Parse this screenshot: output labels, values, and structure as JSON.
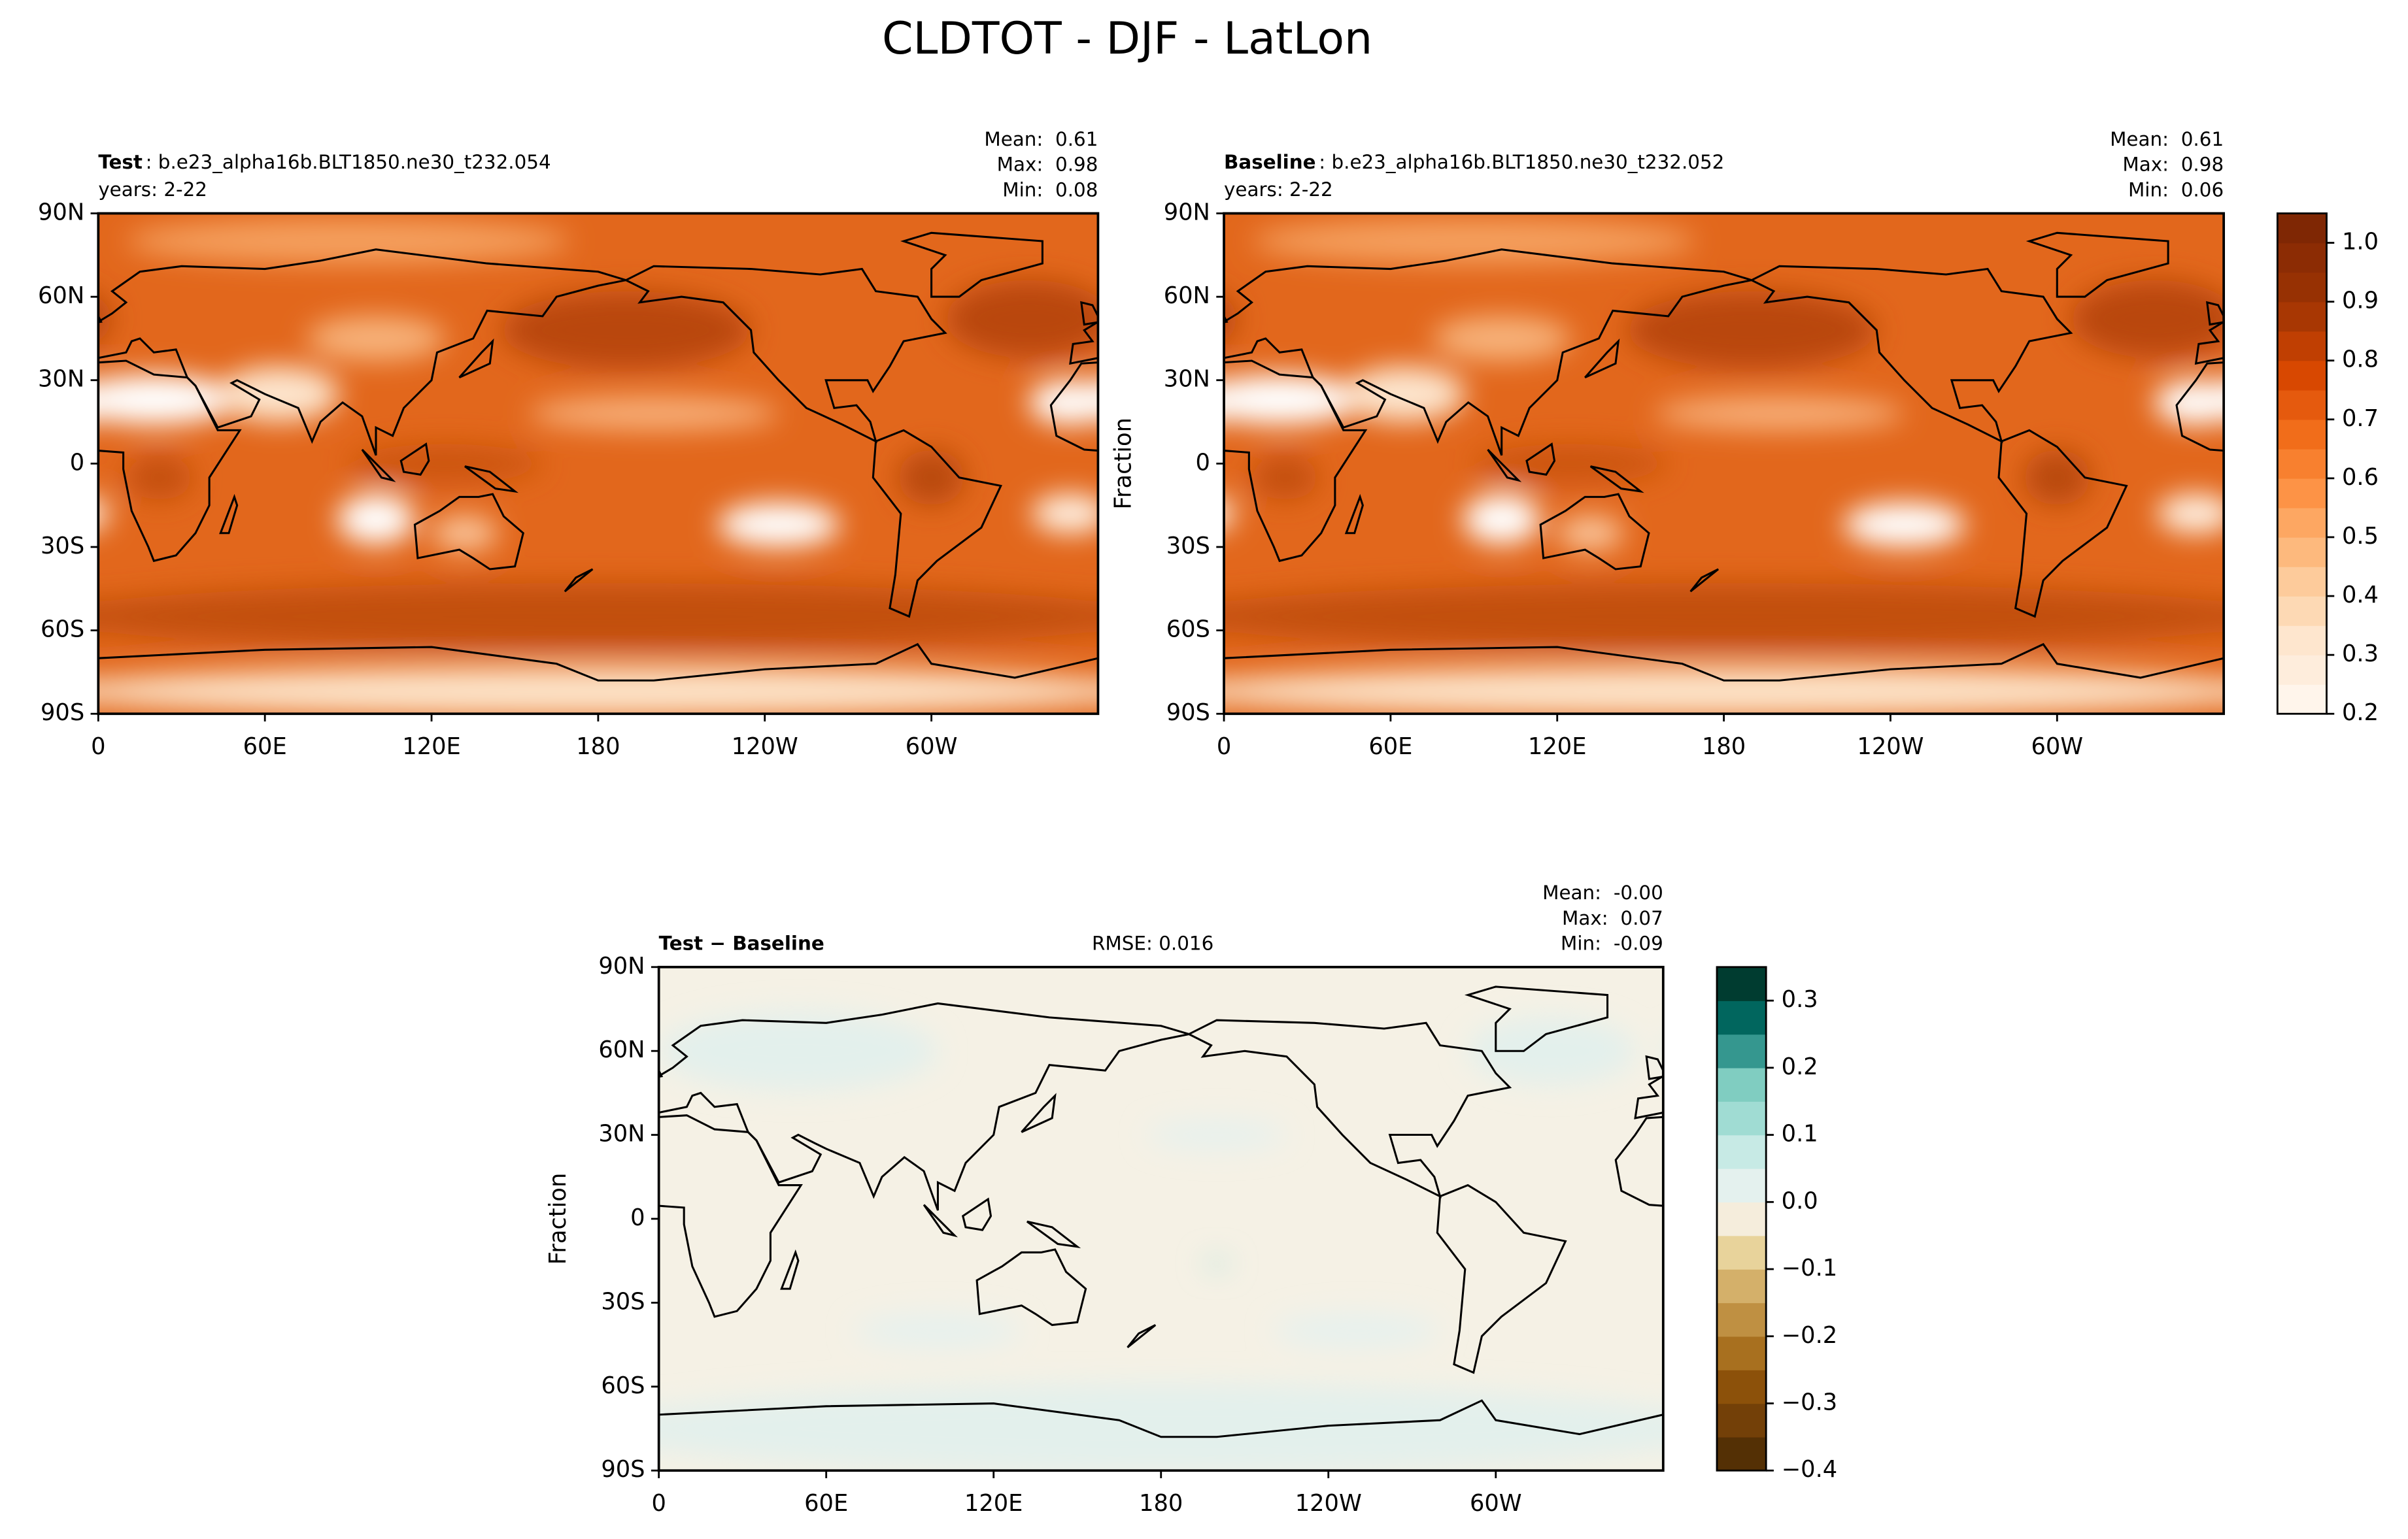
{
  "title": "CLDTOT - DJF - LatLon",
  "chart_data": [
    {
      "type": "map",
      "label": "Test",
      "case": ": b.e23_alpha16b.BLT1850.ne30_t232.054",
      "subtitle": "years: 2-22",
      "stats": [
        {
          "name": "Mean:",
          "value": 0.61
        },
        {
          "name": "Max:",
          "value": 0.98
        },
        {
          "name": "Min:",
          "value": 0.08
        }
      ],
      "xlim": [
        0,
        360
      ],
      "xticks": [
        0,
        {
          "value": 60,
          "label": "60E"
        },
        {
          "value": 120,
          "label": "120E"
        },
        180,
        {
          "value": 240,
          "label": "120W"
        },
        {
          "value": 300,
          "label": "60W"
        }
      ],
      "ylim": [
        -90,
        90
      ],
      "yticks": [
        {
          "value": -90,
          "label": "90S"
        },
        {
          "value": -60,
          "label": "60S"
        },
        {
          "value": -30,
          "label": "30S"
        },
        0,
        {
          "value": 30,
          "label": "30N"
        },
        {
          "value": 60,
          "label": "60N"
        },
        {
          "value": 90,
          "label": "90N"
        }
      ]
    },
    {
      "type": "map",
      "label": "Baseline",
      "case": ": b.e23_alpha16b.BLT1850.ne30_t232.052",
      "subtitle": "years: 2-22",
      "stats": [
        {
          "name": "Mean:",
          "value": 0.61
        },
        {
          "name": "Max:",
          "value": 0.98
        },
        {
          "name": "Min:",
          "value": 0.06
        }
      ],
      "xlim": [
        0,
        360
      ],
      "xticks": [
        0,
        {
          "value": 60,
          "label": "60E"
        },
        {
          "value": 120,
          "label": "120E"
        },
        180,
        {
          "value": 240,
          "label": "120W"
        },
        {
          "value": 300,
          "label": "60W"
        }
      ],
      "ylim": [
        -90,
        90
      ],
      "yticks": [
        {
          "value": -90,
          "label": "90S"
        },
        {
          "value": -60,
          "label": "60S"
        },
        {
          "value": -30,
          "label": "30S"
        },
        0,
        {
          "value": 30,
          "label": "30N"
        },
        {
          "value": 60,
          "label": "60N"
        },
        {
          "value": 90,
          "label": "90N"
        }
      ],
      "colorbar": {
        "label": "Fraction",
        "lim": [
          0.2,
          1.05
        ],
        "ticks": [
          0.2,
          0.3,
          0.4,
          0.5,
          0.6,
          0.7,
          0.8,
          0.9,
          {
            "value": 1,
            "label": "1.0"
          }
        ],
        "colors": [
          "#fff5eb",
          "#feeddc",
          "#fee6ce",
          "#fdd9b4",
          "#fdcb9b",
          "#fdb97d",
          "#fda762",
          "#fd9346",
          "#f8802f",
          "#f16d1a",
          "#e55a0e",
          "#d84801",
          "#c03f02",
          "#a83703",
          "#973103",
          "#8c2c04",
          "#7f2704"
        ]
      }
    },
    {
      "type": "map",
      "label": "Test − Baseline",
      "rmse": {
        "name": "RMSE:",
        "value": 0.016
      },
      "stats": [
        {
          "name": "Mean:",
          "value": 0,
          "label": "-0.00"
        },
        {
          "name": "Max:",
          "value": 0.07
        },
        {
          "name": "Min:",
          "value": -0.09
        }
      ],
      "xlim": [
        0,
        360
      ],
      "xticks": [
        0,
        {
          "value": 60,
          "label": "60E"
        },
        {
          "value": 120,
          "label": "120E"
        },
        180,
        {
          "value": 240,
          "label": "120W"
        },
        {
          "value": 300,
          "label": "60W"
        }
      ],
      "ylim": [
        -90,
        90
      ],
      "yticks": [
        {
          "value": -90,
          "label": "90S"
        },
        {
          "value": -60,
          "label": "60S"
        },
        {
          "value": -30,
          "label": "30S"
        },
        0,
        {
          "value": 30,
          "label": "30N"
        },
        {
          "value": 60,
          "label": "60N"
        },
        {
          "value": 90,
          "label": "90N"
        }
      ],
      "colorbar": {
        "label": "Fraction",
        "lim": [
          -0.4,
          0.35
        ],
        "ticks": [
          {
            "value": -0.4,
            "label": "−0.4"
          },
          {
            "value": -0.3,
            "label": "−0.3"
          },
          {
            "value": -0.2,
            "label": "−0.2"
          },
          {
            "value": -0.1,
            "label": "−0.1"
          },
          {
            "value": 0,
            "label": "0.0"
          },
          0.1,
          0.2,
          0.3
        ],
        "colors": [
          "#543005",
          "#734008",
          "#8c510a",
          "#a8701f",
          "#bf9042",
          "#d4b06a",
          "#e8d39b",
          "#f5eddc",
          "#e4f1ee",
          "#c7eae5",
          "#a0dcd3",
          "#80cdc1",
          "#35978f",
          "#01665e",
          "#003c30"
        ]
      }
    }
  ]
}
